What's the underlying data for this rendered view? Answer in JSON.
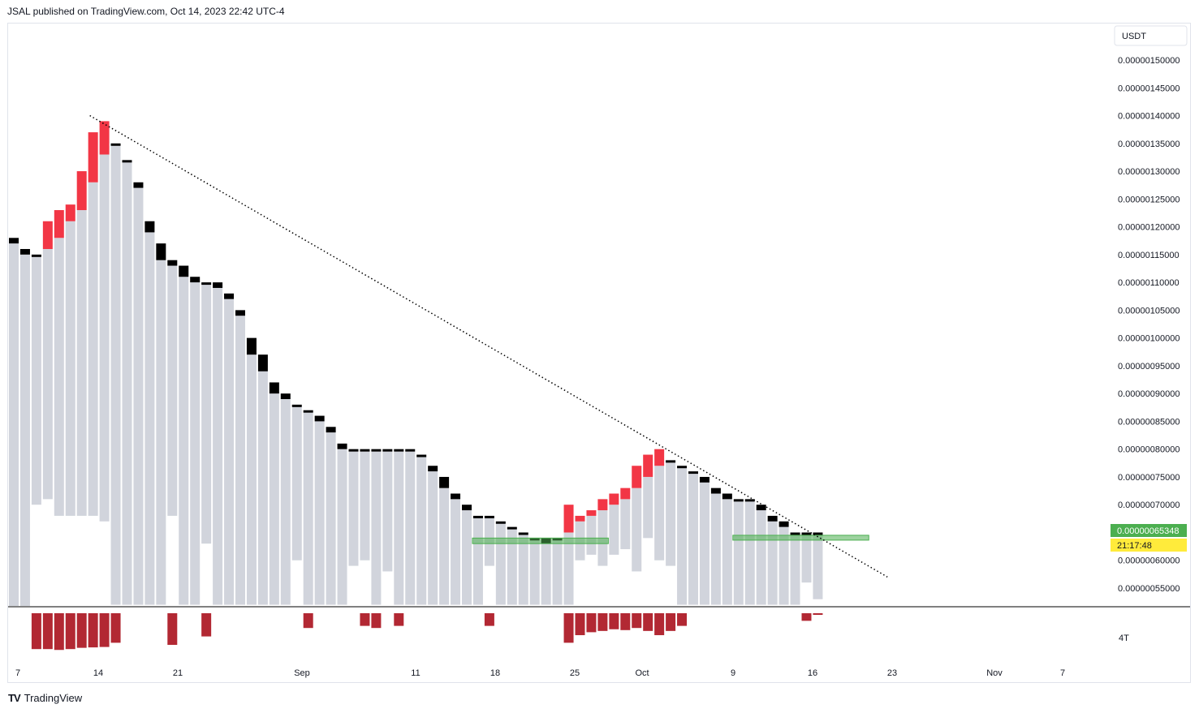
{
  "header": {
    "published": "JSAL published on TradingView.com, Oct 14, 2023 22:42 UTC-4"
  },
  "footer": {
    "brand": "TradingView"
  },
  "colors": {
    "up": "#f23645",
    "down": "#000000",
    "body": "#d1d4dc",
    "volume": "#b22833",
    "zone": "#4caf50",
    "price_badge": "#4caf50",
    "timer_badge": "#ffeb3b"
  },
  "chart_data": {
    "type": "bar",
    "symbol_currency": "USDT",
    "price_ticks": [
      "0.00000055000",
      "0.00000060000",
      "0.00000065000",
      "0.00000070000",
      "0.00000075000",
      "0.00000080000",
      "0.00000085000",
      "0.00000090000",
      "0.00000095000",
      "0.00000100000",
      "0.00000105000",
      "0.00000110000",
      "0.00000115000",
      "0.00000120000",
      "0.00000125000",
      "0.00000130000",
      "0.00000135000",
      "0.00000140000",
      "0.00000145000",
      "0.00000150000"
    ],
    "ylim": [
      5.13e-07,
      1.55e-06
    ],
    "last_price": "0.00000065348",
    "countdown": "21:17:48",
    "time_ticks": [
      "7",
      "14",
      "21",
      "Sep",
      "11",
      "18",
      "25",
      "Oct",
      "9",
      "16",
      "23",
      "Nov",
      "7"
    ],
    "volume_label": "4T",
    "bars": [
      {
        "o": 1.18,
        "c": 1.17,
        "low": 0.0
      },
      {
        "o": 1.16,
        "c": 1.15,
        "low": 0.0
      },
      {
        "o": 1.15,
        "c": 1.15,
        "low": 0.7
      },
      {
        "o": 1.16,
        "c": 1.21,
        "low": 0.71
      },
      {
        "o": 1.18,
        "c": 1.23,
        "low": 0.68
      },
      {
        "o": 1.21,
        "c": 1.24,
        "low": 0.68
      },
      {
        "o": 1.23,
        "c": 1.3,
        "low": 0.68
      },
      {
        "o": 1.28,
        "c": 1.37,
        "low": 0.68
      },
      {
        "o": 1.33,
        "c": 1.39,
        "low": 0.67
      },
      {
        "o": 1.35,
        "c": 1.35,
        "low": 0.52
      },
      {
        "o": 1.32,
        "c": 1.32,
        "low": 0.52
      },
      {
        "o": 1.28,
        "c": 1.27,
        "low": 0.52
      },
      {
        "o": 1.21,
        "c": 1.19,
        "low": 0.52
      },
      {
        "o": 1.17,
        "c": 1.14,
        "low": 0.52
      },
      {
        "o": 1.14,
        "c": 1.13,
        "low": 0.68
      },
      {
        "o": 1.13,
        "c": 1.11,
        "low": 0.52
      },
      {
        "o": 1.11,
        "c": 1.1,
        "low": 0.52
      },
      {
        "o": 1.1,
        "c": 1.1,
        "low": 0.63
      },
      {
        "o": 1.1,
        "c": 1.09,
        "low": 0.52
      },
      {
        "o": 1.08,
        "c": 1.07,
        "low": 0.52
      },
      {
        "o": 1.05,
        "c": 1.04,
        "low": 0.52
      },
      {
        "o": 1.0,
        "c": 0.97,
        "low": 0.52
      },
      {
        "o": 0.97,
        "c": 0.94,
        "low": 0.52
      },
      {
        "o": 0.92,
        "c": 0.9,
        "low": 0.52
      },
      {
        "o": 0.9,
        "c": 0.89,
        "low": 0.52
      },
      {
        "o": 0.88,
        "c": 0.88,
        "low": 0.6
      },
      {
        "o": 0.87,
        "c": 0.87,
        "low": 0.52
      },
      {
        "o": 0.86,
        "c": 0.85,
        "low": 0.52
      },
      {
        "o": 0.84,
        "c": 0.83,
        "low": 0.52
      },
      {
        "o": 0.81,
        "c": 0.8,
        "low": 0.52
      },
      {
        "o": 0.8,
        "c": 0.8,
        "low": 0.59
      },
      {
        "o": 0.8,
        "c": 0.8,
        "low": 0.6
      },
      {
        "o": 0.8,
        "c": 0.8,
        "low": 0.52
      },
      {
        "o": 0.8,
        "c": 0.8,
        "low": 0.58
      },
      {
        "o": 0.8,
        "c": 0.8,
        "low": 0.52
      },
      {
        "o": 0.8,
        "c": 0.8,
        "low": 0.52
      },
      {
        "o": 0.79,
        "c": 0.79,
        "low": 0.52
      },
      {
        "o": 0.77,
        "c": 0.76,
        "low": 0.52
      },
      {
        "o": 0.75,
        "c": 0.73,
        "low": 0.52
      },
      {
        "o": 0.72,
        "c": 0.71,
        "low": 0.52
      },
      {
        "o": 0.7,
        "c": 0.69,
        "low": 0.52
      },
      {
        "o": 0.68,
        "c": 0.68,
        "low": 0.52
      },
      {
        "o": 0.68,
        "c": 0.68,
        "low": 0.59
      },
      {
        "o": 0.67,
        "c": 0.67,
        "low": 0.52
      },
      {
        "o": 0.66,
        "c": 0.66,
        "low": 0.52
      },
      {
        "o": 0.65,
        "c": 0.65,
        "low": 0.52
      },
      {
        "o": 0.64,
        "c": 0.64,
        "low": 0.52
      },
      {
        "o": 0.64,
        "c": 0.63,
        "low": 0.52
      },
      {
        "o": 0.64,
        "c": 0.64,
        "low": 0.52
      },
      {
        "o": 0.65,
        "c": 0.7,
        "low": 0.52
      },
      {
        "o": 0.67,
        "c": 0.68,
        "low": 0.6
      },
      {
        "o": 0.68,
        "c": 0.69,
        "low": 0.61
      },
      {
        "o": 0.69,
        "c": 0.71,
        "low": 0.59
      },
      {
        "o": 0.7,
        "c": 0.72,
        "low": 0.61
      },
      {
        "o": 0.71,
        "c": 0.73,
        "low": 0.62
      },
      {
        "o": 0.73,
        "c": 0.77,
        "low": 0.58
      },
      {
        "o": 0.75,
        "c": 0.79,
        "low": 0.64
      },
      {
        "o": 0.77,
        "c": 0.8,
        "low": 0.6
      },
      {
        "o": 0.78,
        "c": 0.78,
        "low": 0.59
      },
      {
        "o": 0.77,
        "c": 0.77,
        "low": 0.52
      },
      {
        "o": 0.76,
        "c": 0.76,
        "low": 0.52
      },
      {
        "o": 0.75,
        "c": 0.74,
        "low": 0.52
      },
      {
        "o": 0.73,
        "c": 0.72,
        "low": 0.52
      },
      {
        "o": 0.72,
        "c": 0.71,
        "low": 0.52
      },
      {
        "o": 0.71,
        "c": 0.71,
        "low": 0.52
      },
      {
        "o": 0.71,
        "c": 0.71,
        "low": 0.52
      },
      {
        "o": 0.7,
        "c": 0.69,
        "low": 0.52
      },
      {
        "o": 0.68,
        "c": 0.67,
        "low": 0.52
      },
      {
        "o": 0.67,
        "c": 0.66,
        "low": 0.52
      },
      {
        "o": 0.65,
        "c": 0.65,
        "low": 0.52
      },
      {
        "o": 0.65,
        "c": 0.65,
        "low": 0.56
      },
      {
        "o": 0.65,
        "c": 0.65,
        "low": 0.53
      }
    ],
    "volume": [
      0,
      0,
      0.85,
      0.85,
      0.87,
      0.85,
      0.82,
      0.81,
      0.8,
      0.7,
      0,
      0,
      0,
      0,
      0.75,
      0,
      0,
      0.55,
      0,
      0,
      0,
      0,
      0,
      0,
      0,
      0,
      0.35,
      0,
      0,
      0,
      0,
      0.3,
      0.35,
      0,
      0.3,
      0,
      0,
      0,
      0,
      0,
      0,
      0,
      0.3,
      0,
      0,
      0,
      0,
      0,
      0,
      0.7,
      0.52,
      0.45,
      0.42,
      0.38,
      0.4,
      0.35,
      0.42,
      0.52,
      0.42,
      0.3,
      0,
      0,
      0,
      0,
      0,
      0,
      0,
      0,
      0,
      0,
      0.18,
      0.03
    ],
    "trendline": {
      "from": {
        "i": 7,
        "price": 1.4
      },
      "to": {
        "i": 77,
        "price": 0.57
      }
    },
    "zones": [
      {
        "from_i": 40.5,
        "to_i": 52.5,
        "top": 0.64,
        "bottom": 0.63
      },
      {
        "from_i": 63.5,
        "to_i": 75.5,
        "top": 0.645,
        "bottom": 0.64
      }
    ]
  }
}
